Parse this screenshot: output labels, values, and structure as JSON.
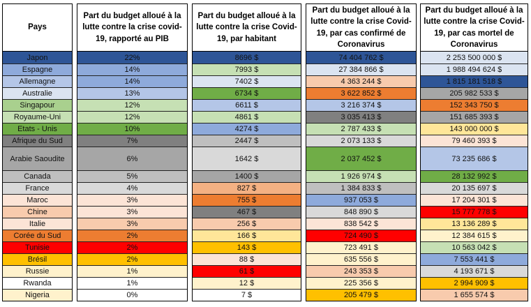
{
  "headers": {
    "pays": "Pays",
    "pib": "Part du budget alloué à la lutte contre la crise covid-19, rapporté au PIB",
    "habitant": "Part du budget alloué à la lutte contre la crise Covid-19, par habitant",
    "cas": "Part du budget alloué à la lutte contre la crise Covid-19, par cas confirmé de Coronavirus",
    "mortel": "Part du budget alloué à la lutte contre la crise Covid-19, par cas mortel de Coronavirus"
  },
  "rows": [
    {
      "pays": "Japon",
      "pib": "22%",
      "habitant": "8696 $",
      "cas": "74 404 762 $",
      "mortel": "2 253 500 000 $",
      "c_pays": "#2e5597",
      "c_pib": "#2e5597",
      "c_hab": "#2e5597",
      "c_cas": "#2e5597",
      "c_mor": "#dbe4f1"
    },
    {
      "pays": "Espagne",
      "pib": "14%",
      "habitant": "7993 $",
      "cas": "27 384 866 $",
      "mortel": "1 988 494 624 $",
      "c_pays": "#8eaadb",
      "c_pib": "#8eaadb",
      "c_hab": "#c6e0b4",
      "c_cas": "#dbe4f1",
      "c_mor": "#dbe4f1"
    },
    {
      "pays": "Allemagne",
      "pib": "14%",
      "habitant": "7402 $",
      "cas": "4 363 244 $",
      "mortel": "1 815 181 518 $",
      "c_pays": "#b4c6e7",
      "c_pib": "#8eaadb",
      "c_hab": "#dbe4f1",
      "c_cas": "#f8cbad",
      "c_mor": "#2e5597"
    },
    {
      "pays": "Australie",
      "pib": "13%",
      "habitant": "6734 $",
      "cas": "3 622 852 $",
      "mortel": "205 982 533 $",
      "c_pays": "#dbe4f1",
      "c_pib": "#b4c6e7",
      "c_hab": "#70ad47",
      "c_cas": "#ed7d31",
      "c_mor": "#a6a6a6"
    },
    {
      "pays": "Singapour",
      "pib": "12%",
      "habitant": "6611 $",
      "cas": "3 216 374 $",
      "mortel": "152 343 750 $",
      "c_pays": "#a9d08e",
      "c_pib": "#c6e0b4",
      "c_hab": "#b4c6e7",
      "c_cas": "#b4c6e7",
      "c_mor": "#ed7d31"
    },
    {
      "pays": "Royaume-Uni",
      "pib": "12%",
      "habitant": "4861 $",
      "cas": "3 035 413 $",
      "mortel": "151 685 393 $",
      "c_pays": "#c6e0b4",
      "c_pib": "#c6e0b4",
      "c_hab": "#c6e0b4",
      "c_cas": "#808080",
      "c_mor": "#a6a6a6"
    },
    {
      "pays": "Etats - Unis",
      "pib": "10%",
      "habitant": "4274 $",
      "cas": "2 787 433 $",
      "mortel": "143 000 000 $",
      "c_pays": "#70ad47",
      "c_pib": "#70ad47",
      "c_hab": "#8eaadb",
      "c_cas": "#c6e0b4",
      "c_mor": "#ffe699"
    },
    {
      "pays": "Afrique du Sud",
      "pib": "7%",
      "habitant": "2447 $",
      "cas": "2 073 133 $",
      "mortel": "79 460 393 $",
      "c_pays": "#808080",
      "c_pib": "#808080",
      "c_hab": "#bfbfbf",
      "c_cas": "#d9d9d9",
      "c_mor": "#fce4d6"
    },
    {
      "pays": "Arabie Saoudite",
      "pib": "6%",
      "habitant": "1642 $",
      "cas": "2 037 452 $",
      "mortel": "73 235 686 $",
      "c_pays": "#a6a6a6",
      "c_pib": "#a6a6a6",
      "c_hab": "#d9d9d9",
      "c_cas": "#70ad47",
      "c_mor": "#b4c6e7"
    },
    {
      "pays": "Canada",
      "pib": "5%",
      "habitant": "1400 $",
      "cas": "1 926 974 $",
      "mortel": "28 132 992 $",
      "c_pays": "#bfbfbf",
      "c_pib": "#bfbfbf",
      "c_hab": "#a6a6a6",
      "c_cas": "#c6e0b4",
      "c_mor": "#70ad47"
    },
    {
      "pays": "France",
      "pib": "4%",
      "habitant": "827 $",
      "cas": "1 384 833 $",
      "mortel": "20 135 697 $",
      "c_pays": "#d9d9d9",
      "c_pib": "#d9d9d9",
      "c_hab": "#f4b183",
      "c_cas": "#bfbfbf",
      "c_mor": "#d9d9d9"
    },
    {
      "pays": "Maroc",
      "pib": "3%",
      "habitant": "755 $",
      "cas": "937 053 $",
      "mortel": "17 204 301 $",
      "c_pays": "#fce4d6",
      "c_pib": "#fce4d6",
      "c_hab": "#ed7d31",
      "c_cas": "#8eaadb",
      "c_mor": "#fce4d6"
    },
    {
      "pays": "Chine",
      "pib": "3%",
      "habitant": "467 $",
      "cas": "848 890 $",
      "mortel": "15 777 778 $",
      "c_pays": "#f8cbad",
      "c_pib": "#fce4d6",
      "c_hab": "#808080",
      "c_cas": "#d9d9d9",
      "c_mor": "#ff0000"
    },
    {
      "pays": "Italie",
      "pib": "3%",
      "habitant": "256 $",
      "cas": "838 542 $",
      "mortel": "13 136 289 $",
      "c_pays": "#fce4d6",
      "c_pib": "#f8cbad",
      "c_hab": "#f8cbad",
      "c_cas": "#fce4d6",
      "c_mor": "#ffe699"
    },
    {
      "pays": "Corée du Sud",
      "pib": "2%",
      "habitant": "166 $",
      "cas": "724 490 $",
      "mortel": "12 384 615 $",
      "c_pays": "#ed7d31",
      "c_pib": "#ed7d31",
      "c_hab": "#ffe699",
      "c_cas": "#ff0000",
      "c_mor": "#fff2cc"
    },
    {
      "pays": "Tunisie",
      "pib": "2%",
      "habitant": "143 $",
      "cas": "723 491 $",
      "mortel": "10 563 042 $",
      "c_pays": "#ff0000",
      "c_pib": "#ff0000",
      "c_hab": "#ffc000",
      "c_cas": "#fff2cc",
      "c_mor": "#c6e0b4"
    },
    {
      "pays": "Brésil",
      "pib": "2%",
      "habitant": "88 $",
      "cas": "635 556 $",
      "mortel": "7 553 441 $",
      "c_pays": "#ffc000",
      "c_pib": "#ffc000",
      "c_hab": "#fce4d6",
      "c_cas": "#fff2cc",
      "c_mor": "#8eaadb"
    },
    {
      "pays": "Russie",
      "pib": "1%",
      "habitant": "61 $",
      "cas": "243 353 $",
      "mortel": "4 193 671 $",
      "c_pays": "#fff2cc",
      "c_pib": "#fff2cc",
      "c_hab": "#ff0000",
      "c_cas": "#f8cbad",
      "c_mor": "#d9d9d9"
    },
    {
      "pays": "Rwanda",
      "pib": "1%",
      "habitant": "12 $",
      "cas": "225 356 $",
      "mortel": "2 994 909 $",
      "c_pays": "#ffffff",
      "c_pib": "#ffffff",
      "c_hab": "#fff2cc",
      "c_cas": "#fff2cc",
      "c_mor": "#ffc000"
    },
    {
      "pays": "Nigeria",
      "pib": "0%",
      "habitant": "7 $",
      "cas": "205 479 $",
      "mortel": "1 655 574 $",
      "c_pays": "#fff2cc",
      "c_pib": "#ffffff",
      "c_hab": "#ffffff",
      "c_cas": "#ffc000",
      "c_mor": "#f8cbad"
    }
  ]
}
